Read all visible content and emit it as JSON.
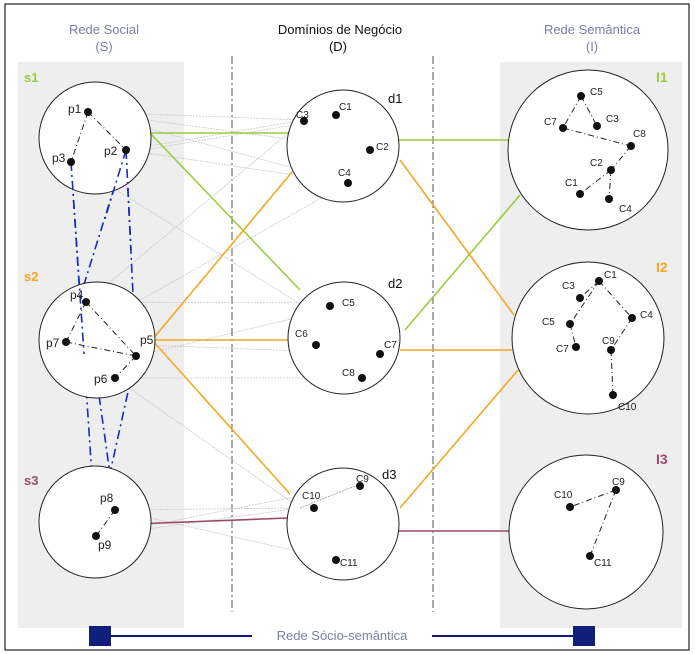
{
  "headers": {
    "social": "Rede Social",
    "social_sub": "(S)",
    "domains": "Domínios de Negócio",
    "domains_sub": "(D)",
    "semantic": "Rede Semântica",
    "semantic_sub": "(I)"
  },
  "groups": {
    "s1": "s1",
    "s2": "s2",
    "s3": "s3",
    "d1": "d1",
    "d2": "d2",
    "d3": "d3",
    "I1": "I1",
    "I2": "I2",
    "I3": "I3"
  },
  "people": {
    "p1": "p1",
    "p2": "p2",
    "p3": "p3",
    "p4": "p4",
    "p5": "p5",
    "p6": "p6",
    "p7": "p7",
    "p8": "p8",
    "p9": "p9"
  },
  "concepts": {
    "d1": {
      "c1": "C1",
      "c2": "C2",
      "c3": "C3",
      "c4": "C4"
    },
    "d2": {
      "c5": "C5",
      "c6": "C6",
      "c7": "C7",
      "c8": "C8"
    },
    "d3": {
      "c9": "C9",
      "c10": "C10",
      "c11": "C11"
    },
    "I1": {
      "c5": "C5",
      "c3": "C3",
      "c7": "C7",
      "c8": "C8",
      "c2": "C2",
      "c1": "C1",
      "c4": "C4"
    },
    "I2": {
      "c1": "C1",
      "c3": "C3",
      "c5": "C5",
      "c4": "C4",
      "c7": "C7",
      "c9": "C9",
      "c10": "C10"
    },
    "I3": {
      "c10": "C10",
      "c9": "C9",
      "c11": "C11"
    }
  },
  "footer": {
    "label": "Rede Sócio-semântica"
  },
  "colors": {
    "green": "#9ccc3c",
    "orange": "#f5a623",
    "purple": "#9b4a6b",
    "blue": "#1a2bbf",
    "navy": "#0f1f7a",
    "header_gray": "#7a7fa6",
    "panel": "#efefef"
  }
}
